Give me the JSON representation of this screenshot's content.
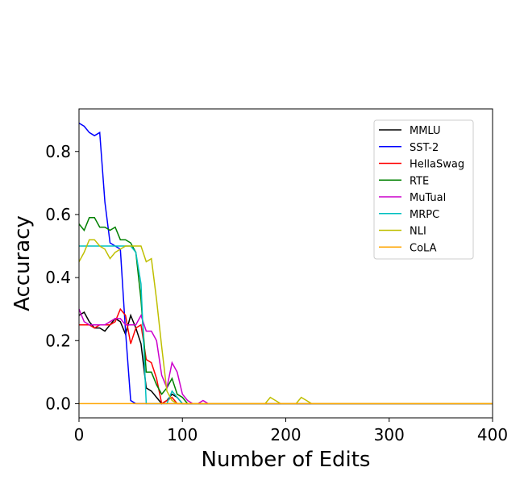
{
  "chart_data": {
    "type": "line",
    "xlabel": "Number of Edits",
    "ylabel": "Accuracy",
    "xlim": [
      0,
      400
    ],
    "ylim": [
      -0.045,
      0.935
    ],
    "xticks": [
      0,
      100,
      200,
      300,
      400
    ],
    "yticks": [
      0.0,
      0.2,
      0.4,
      0.6,
      0.8
    ],
    "ytick_labels": [
      "0.0",
      "0.2",
      "0.4",
      "0.6",
      "0.8"
    ],
    "grid": false,
    "legend_position": "upper-right",
    "series": [
      {
        "name": "MMLU",
        "color": "#000000",
        "points": [
          [
            0,
            0.28
          ],
          [
            5,
            0.29
          ],
          [
            10,
            0.26
          ],
          [
            15,
            0.24
          ],
          [
            20,
            0.24
          ],
          [
            25,
            0.23
          ],
          [
            30,
            0.25
          ],
          [
            35,
            0.27
          ],
          [
            40,
            0.26
          ],
          [
            45,
            0.22
          ],
          [
            50,
            0.28
          ],
          [
            55,
            0.24
          ],
          [
            60,
            0.19
          ],
          [
            65,
            0.05
          ],
          [
            70,
            0.04
          ],
          [
            75,
            0.02
          ],
          [
            80,
            0.0
          ],
          [
            85,
            0.01
          ],
          [
            90,
            0.03
          ],
          [
            95,
            0.02
          ],
          [
            100,
            0.0
          ],
          [
            400,
            0.0
          ]
        ]
      },
      {
        "name": "SST-2",
        "color": "#0000ff",
        "points": [
          [
            0,
            0.89
          ],
          [
            5,
            0.88
          ],
          [
            10,
            0.86
          ],
          [
            15,
            0.85
          ],
          [
            20,
            0.86
          ],
          [
            25,
            0.64
          ],
          [
            30,
            0.51
          ],
          [
            35,
            0.5
          ],
          [
            40,
            0.49
          ],
          [
            45,
            0.23
          ],
          [
            50,
            0.01
          ],
          [
            55,
            0.0
          ],
          [
            400,
            0.0
          ]
        ]
      },
      {
        "name": "HellaSwag",
        "color": "#ff0000",
        "points": [
          [
            0,
            0.25
          ],
          [
            10,
            0.25
          ],
          [
            15,
            0.24
          ],
          [
            20,
            0.25
          ],
          [
            30,
            0.25
          ],
          [
            35,
            0.26
          ],
          [
            40,
            0.3
          ],
          [
            45,
            0.28
          ],
          [
            50,
            0.19
          ],
          [
            55,
            0.24
          ],
          [
            60,
            0.25
          ],
          [
            65,
            0.14
          ],
          [
            70,
            0.13
          ],
          [
            75,
            0.08
          ],
          [
            80,
            0.0
          ],
          [
            85,
            0.01
          ],
          [
            90,
            0.02
          ],
          [
            95,
            0.0
          ],
          [
            400,
            0.0
          ]
        ]
      },
      {
        "name": "RTE",
        "color": "#008000",
        "points": [
          [
            0,
            0.57
          ],
          [
            5,
            0.55
          ],
          [
            10,
            0.59
          ],
          [
            15,
            0.59
          ],
          [
            20,
            0.56
          ],
          [
            25,
            0.56
          ],
          [
            30,
            0.55
          ],
          [
            35,
            0.56
          ],
          [
            40,
            0.52
          ],
          [
            45,
            0.52
          ],
          [
            50,
            0.51
          ],
          [
            55,
            0.48
          ],
          [
            60,
            0.33
          ],
          [
            65,
            0.1
          ],
          [
            70,
            0.1
          ],
          [
            75,
            0.06
          ],
          [
            80,
            0.03
          ],
          [
            85,
            0.05
          ],
          [
            90,
            0.08
          ],
          [
            95,
            0.03
          ],
          [
            100,
            0.02
          ],
          [
            105,
            0.0
          ],
          [
            400,
            0.0
          ]
        ]
      },
      {
        "name": "MuTual",
        "color": "#cc00cc",
        "points": [
          [
            0,
            0.3
          ],
          [
            5,
            0.26
          ],
          [
            10,
            0.25
          ],
          [
            15,
            0.25
          ],
          [
            25,
            0.25
          ],
          [
            30,
            0.26
          ],
          [
            35,
            0.27
          ],
          [
            40,
            0.27
          ],
          [
            45,
            0.25
          ],
          [
            50,
            0.25
          ],
          [
            55,
            0.25
          ],
          [
            60,
            0.28
          ],
          [
            65,
            0.23
          ],
          [
            70,
            0.23
          ],
          [
            75,
            0.2
          ],
          [
            80,
            0.09
          ],
          [
            85,
            0.05
          ],
          [
            90,
            0.13
          ],
          [
            95,
            0.1
          ],
          [
            100,
            0.03
          ],
          [
            105,
            0.01
          ],
          [
            110,
            0.0
          ],
          [
            115,
            0.0
          ],
          [
            120,
            0.01
          ],
          [
            125,
            0.0
          ],
          [
            400,
            0.0
          ]
        ]
      },
      {
        "name": "MRPC",
        "color": "#00bfbf",
        "points": [
          [
            0,
            0.5
          ],
          [
            50,
            0.5
          ],
          [
            55,
            0.48
          ],
          [
            60,
            0.38
          ],
          [
            65,
            0.0
          ],
          [
            85,
            0.0
          ],
          [
            90,
            0.04
          ],
          [
            95,
            0.02
          ],
          [
            100,
            0.0
          ],
          [
            400,
            0.0
          ]
        ]
      },
      {
        "name": "NLI",
        "color": "#bfbf00",
        "points": [
          [
            0,
            0.45
          ],
          [
            5,
            0.48
          ],
          [
            10,
            0.52
          ],
          [
            15,
            0.52
          ],
          [
            20,
            0.5
          ],
          [
            25,
            0.49
          ],
          [
            30,
            0.46
          ],
          [
            35,
            0.48
          ],
          [
            40,
            0.49
          ],
          [
            45,
            0.5
          ],
          [
            50,
            0.5
          ],
          [
            55,
            0.5
          ],
          [
            60,
            0.5
          ],
          [
            65,
            0.45
          ],
          [
            70,
            0.46
          ],
          [
            75,
            0.33
          ],
          [
            80,
            0.18
          ],
          [
            85,
            0.04
          ],
          [
            90,
            0.01
          ],
          [
            95,
            0.0
          ],
          [
            180,
            0.0
          ],
          [
            185,
            0.02
          ],
          [
            190,
            0.01
          ],
          [
            195,
            0.0
          ],
          [
            210,
            0.0
          ],
          [
            215,
            0.02
          ],
          [
            220,
            0.01
          ],
          [
            225,
            0.0
          ],
          [
            400,
            0.0
          ]
        ]
      },
      {
        "name": "CoLA",
        "color": "#ffa500",
        "points": [
          [
            0,
            0.0
          ],
          [
            400,
            0.0
          ]
        ]
      }
    ]
  }
}
